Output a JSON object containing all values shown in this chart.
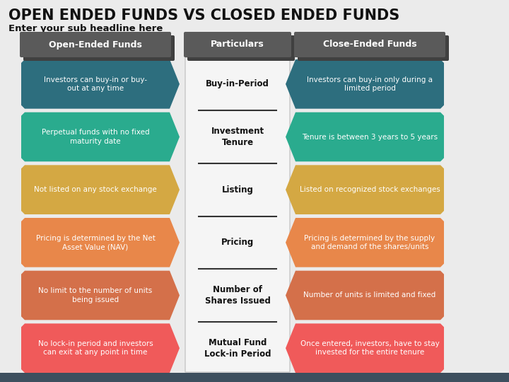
{
  "title": "OPEN ENDED FUNDS VS CLOSED ENDED FUNDS",
  "subtitle": "Enter your sub headline here",
  "bg_color": "#ebebeb",
  "bottom_bar_color": "#3d4f5e",
  "col_headers": [
    "Open-Ended Funds",
    "Particulars",
    "Close-Ended Funds"
  ],
  "particulars": [
    "Buy-in-Period",
    "Investment\nTenure",
    "Listing",
    "Pricing",
    "Number of\nShares Issued",
    "Mutual Fund\nLock-in Period"
  ],
  "left_texts": [
    "Investors can buy-in or buy-\nout at any time",
    "Perpetual funds with no fixed\nmaturity date",
    "Not listed on any stock exchange",
    "Pricing is determined by the Net\nAsset Value (NAV)",
    "No limit to the number of units\nbeing issued",
    "No lock-in period and investors\ncan exit at any point in time"
  ],
  "right_texts": [
    "Investors can buy-in only during a\nlimited period",
    "Tenure is between 3 years to 5 years",
    "Listed on recognized stock exchanges",
    "Pricing is determined by the supply\nand demand of the shares/units",
    "Number of units is limited and fixed",
    "Once entered, investors, have to stay\ninvested for the entire tenure"
  ],
  "row_colors": [
    "#2d6e7e",
    "#2aab8e",
    "#d4a843",
    "#e8874a",
    "#d4704a",
    "#f05a5a"
  ],
  "center_bg": "#f5f5f5",
  "header_color": "#5a5a5a",
  "header_shadow": "#404040"
}
